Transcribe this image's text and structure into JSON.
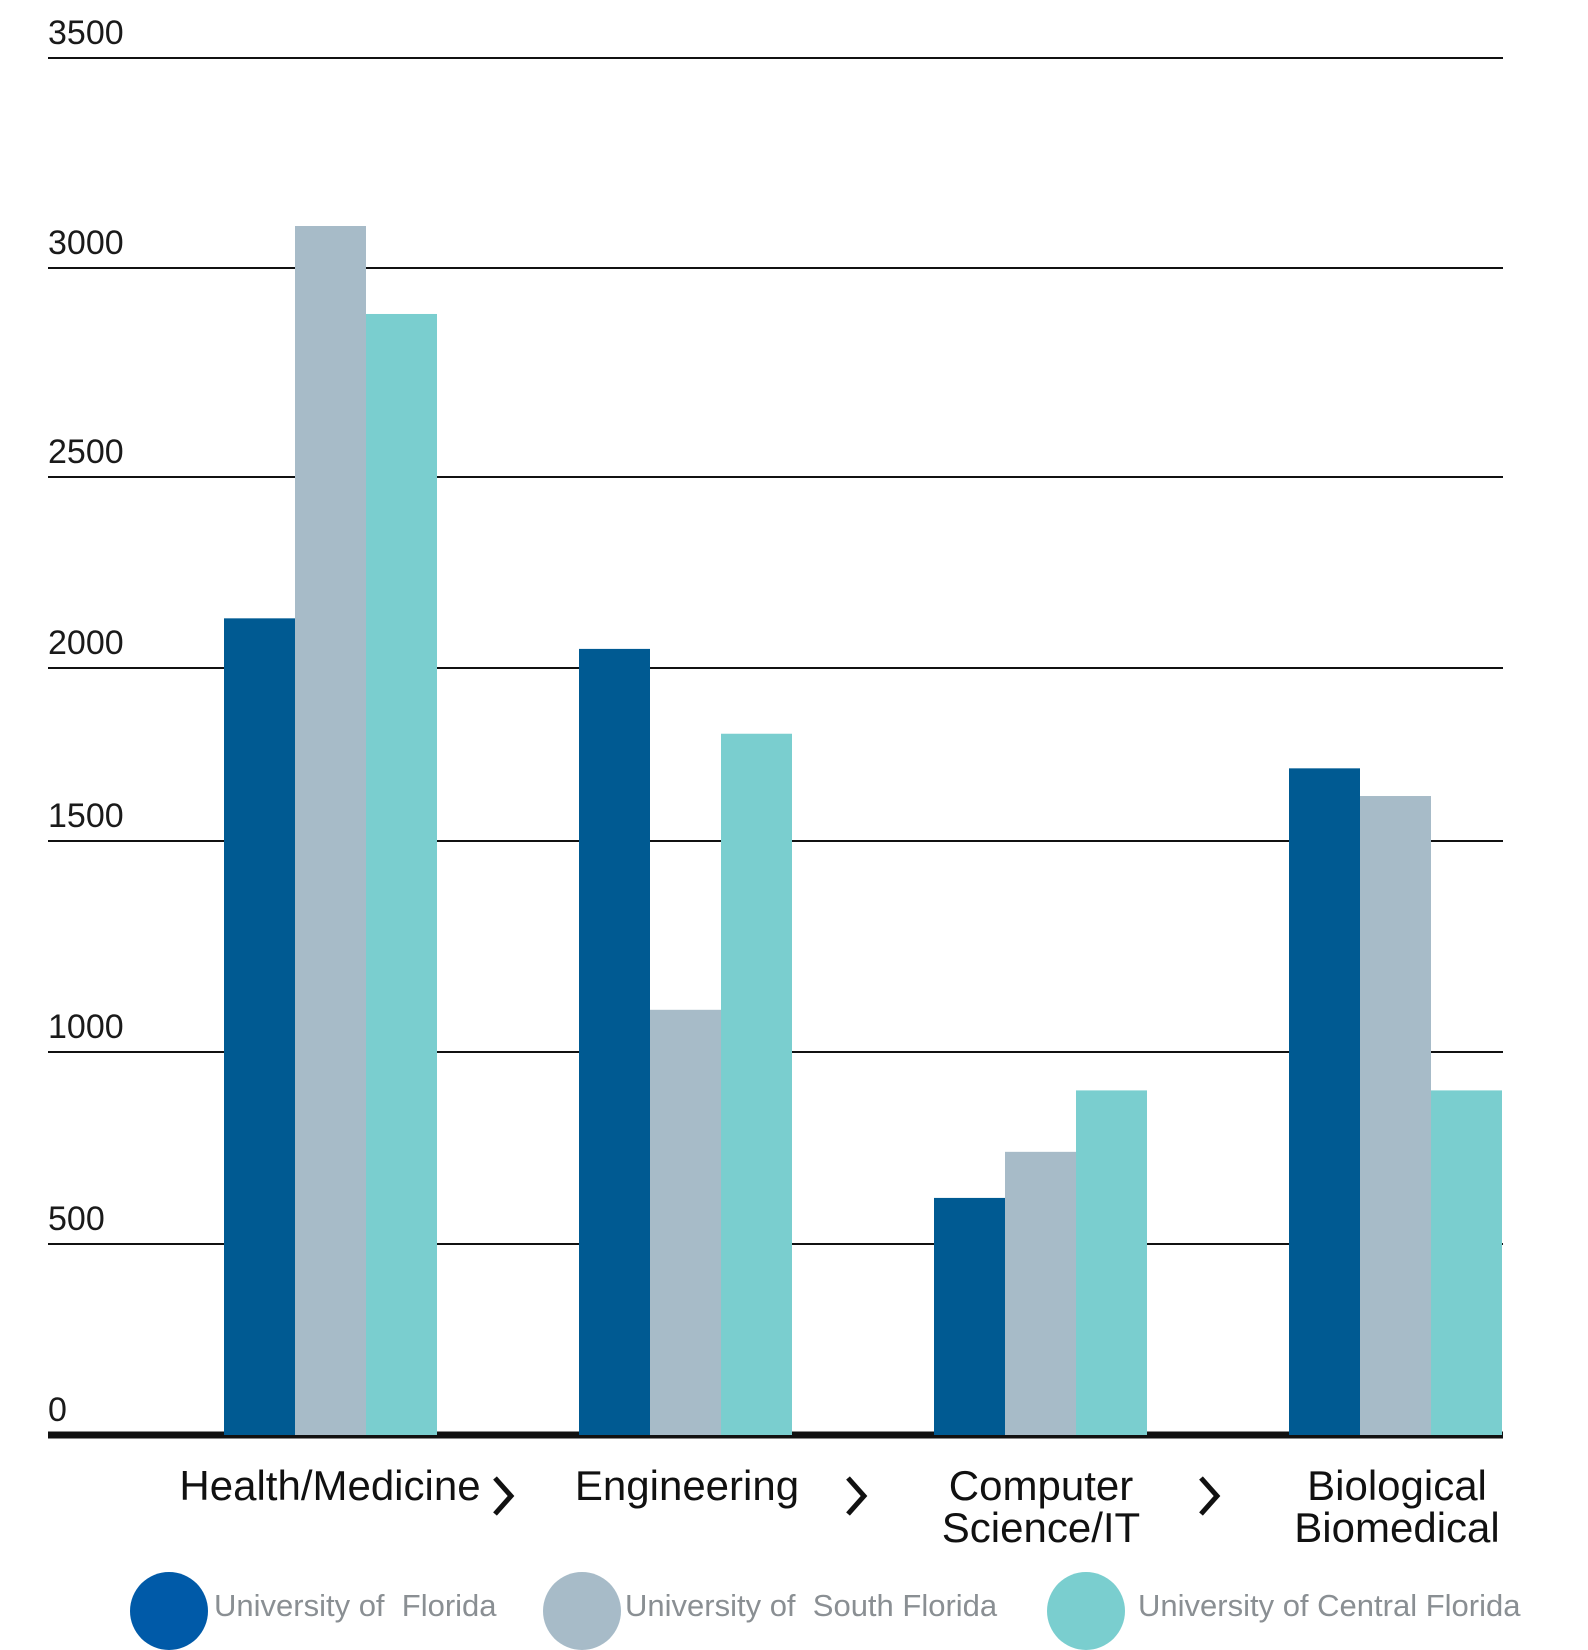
{
  "chart_data": {
    "type": "bar",
    "categories": [
      "Health/Medicine",
      "Engineering",
      "Computer\nScience/IT",
      "Biological\nBiomedical"
    ],
    "series": [
      {
        "name": "University of  Florida",
        "color": "#005a92",
        "values": [
          2130,
          2050,
          620,
          1710
        ]
      },
      {
        "name": "University of  South Florida",
        "color": "#a7bbc8",
        "values": [
          3100,
          1100,
          740,
          1630
        ]
      },
      {
        "name": "University of Central Florida",
        "color": "#7acecf",
        "values": [
          2890,
          1810,
          900,
          900
        ]
      }
    ],
    "y_ticks": [
      0,
      500,
      1000,
      1500,
      2000,
      2500,
      3000,
      3500
    ],
    "ylim": [
      0,
      3500
    ],
    "title": "",
    "xlabel": "",
    "ylabel": "",
    "grid": true,
    "legend_position": "bottom",
    "colors": {
      "axis": "#111111",
      "grid": "#111111",
      "legend_text": "#8a8f93",
      "legend_dot_uf": "#005aa8"
    }
  }
}
